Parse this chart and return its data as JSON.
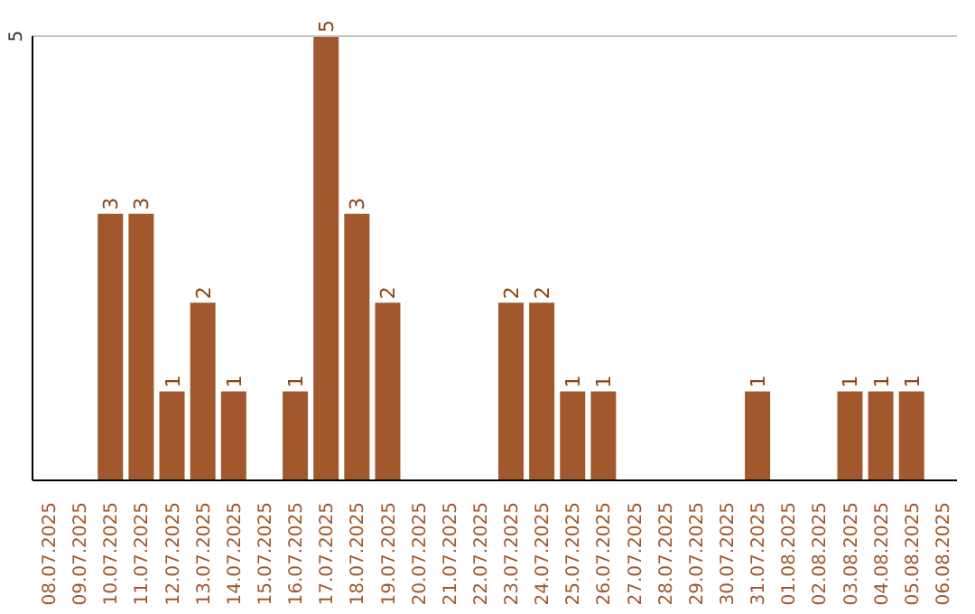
{
  "chart_data": {
    "type": "bar",
    "categories": [
      "08.07.2025",
      "09.07.2025",
      "10.07.2025",
      "11.07.2025",
      "12.07.2025",
      "13.07.2025",
      "14.07.2025",
      "15.07.2025",
      "16.07.2025",
      "17.07.2025",
      "18.07.2025",
      "19.07.2025",
      "20.07.2025",
      "21.07.2025",
      "22.07.2025",
      "23.07.2025",
      "24.07.2025",
      "25.07.2025",
      "26.07.2025",
      "27.07.2025",
      "28.07.2025",
      "29.07.2025",
      "30.07.2025",
      "31.07.2025",
      "01.08.2025",
      "02.08.2025",
      "03.08.2025",
      "04.08.2025",
      "05.08.2025",
      "06.08.2025"
    ],
    "values": [
      null,
      null,
      3,
      3,
      1,
      2,
      1,
      null,
      1,
      5,
      3,
      2,
      null,
      null,
      null,
      2,
      2,
      1,
      1,
      null,
      null,
      null,
      null,
      1,
      null,
      null,
      1,
      1,
      1,
      null
    ],
    "color": "#a0582c",
    "ylim": [
      0,
      5
    ],
    "yticks": [
      5
    ],
    "ref_lines": [
      {
        "axis": "y",
        "value": 5,
        "color": "#c4c4c4"
      }
    ],
    "data_labels": true
  }
}
